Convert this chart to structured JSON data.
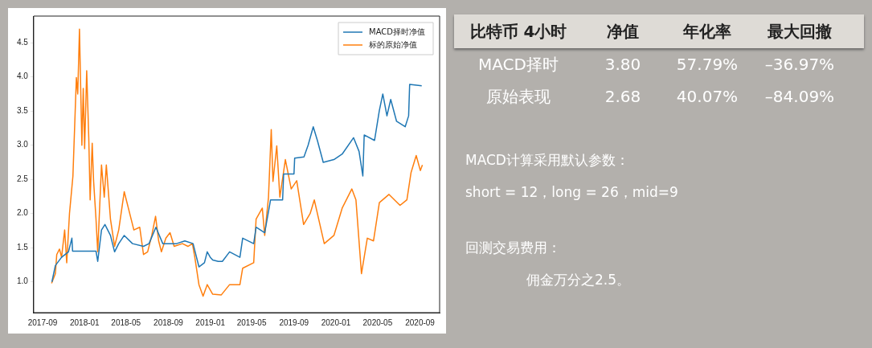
{
  "chart_data": [
    {
      "type": "line",
      "legend": "top right",
      "marker": "none",
      "line_style": "solid",
      "xlim": [
        "2017-08-06",
        "2020-10-28"
      ],
      "xticks": [
        "2017-09",
        "2018-01",
        "2018-05",
        "2018-09",
        "2019-01",
        "2019-05",
        "2019-09",
        "2020-01",
        "2020-05",
        "2020-09"
      ],
      "ylim": [
        0.55,
        4.89
      ],
      "yticks": [
        {
          "value": 1,
          "label": "1.0"
        },
        1.5,
        {
          "value": 2,
          "label": "2.0"
        },
        2.5,
        {
          "value": 3,
          "label": "3.0"
        },
        3.5,
        {
          "value": 4,
          "label": "4.0"
        },
        4.5
      ],
      "series": [
        {
          "name": "MACD择时净值",
          "color": "#1f77b4",
          "x": [
            "2017-09-28",
            "2017-10-08",
            "2017-10-26",
            "2017-11-15",
            "2017-11-25",
            "2017-11-27",
            "2018-02-03",
            "2018-02-08",
            "2018-02-19",
            "2018-03-01",
            "2018-03-17",
            "2018-03-29",
            "2018-04-10",
            "2018-04-26",
            "2018-05-20",
            "2018-06-21",
            "2018-07-07",
            "2018-07-27",
            "2018-08-16",
            "2018-09-25",
            "2018-10-19",
            "2018-11-12",
            "2018-11-22",
            "2018-11-29",
            "2018-12-15",
            "2018-12-23",
            "2019-01-01",
            "2019-01-08",
            "2019-01-24",
            "2019-02-05",
            "2019-02-26",
            "2019-03-28",
            "2019-04-05",
            "2019-05-07",
            "2019-05-14",
            "2019-06-08",
            "2019-06-25",
            "2019-07-30",
            "2019-08-02",
            "2019-09-01",
            "2019-09-03",
            "2019-09-30",
            "2019-10-12",
            "2019-10-27",
            "2019-11-08",
            "2019-11-25",
            "2019-12-26",
            "2020-01-19",
            "2020-02-21",
            "2020-03-08",
            "2020-03-19",
            "2020-03-23",
            "2020-04-22",
            "2020-05-06",
            "2020-05-16",
            "2020-05-28",
            "2020-06-08",
            "2020-06-25",
            "2020-07-20",
            "2020-07-30",
            "2020-08-02",
            "2020-09-06"
          ],
          "values": [
            1.0,
            1.24,
            1.36,
            1.44,
            1.64,
            1.45,
            1.45,
            1.3,
            1.76,
            1.84,
            1.68,
            1.44,
            1.56,
            1.68,
            1.56,
            1.52,
            1.56,
            1.8,
            1.56,
            1.56,
            1.6,
            1.56,
            1.36,
            1.22,
            1.28,
            1.44,
            1.36,
            1.32,
            1.3,
            1.3,
            1.44,
            1.36,
            1.64,
            1.56,
            1.8,
            1.72,
            2.2,
            2.2,
            2.58,
            2.58,
            2.81,
            2.83,
            3.0,
            3.27,
            3.07,
            2.75,
            2.79,
            2.87,
            3.11,
            2.91,
            2.55,
            3.15,
            3.07,
            3.51,
            3.75,
            3.43,
            3.67,
            3.35,
            3.27,
            3.43,
            3.89,
            3.87
          ]
        },
        {
          "name": "标的原始净值",
          "color": "#ff7f0e",
          "x": [
            "2017-09-27",
            "2017-10-08",
            "2017-10-12",
            "2017-10-20",
            "2017-10-26",
            "2017-11-04",
            "2017-11-10",
            "2017-11-18",
            "2017-11-28",
            "2017-12-08",
            "2017-12-12",
            "2017-12-17",
            "2017-12-24",
            "2017-12-28",
            "2018-01-01",
            "2018-01-07",
            "2018-01-13",
            "2018-01-17",
            "2018-01-23",
            "2018-01-27",
            "2018-02-03",
            "2018-02-08",
            "2018-02-19",
            "2018-02-27",
            "2018-03-05",
            "2018-03-17",
            "2018-03-29",
            "2018-04-10",
            "2018-04-26",
            "2018-05-08",
            "2018-05-24",
            "2018-06-10",
            "2018-06-21",
            "2018-07-03",
            "2018-07-15",
            "2018-07-26",
            "2018-08-04",
            "2018-08-12",
            "2018-08-25",
            "2018-09-06",
            "2018-09-18",
            "2018-10-12",
            "2018-10-28",
            "2018-11-10",
            "2018-11-17",
            "2018-11-29",
            "2018-12-11",
            "2018-12-23",
            "2019-01-08",
            "2019-02-02",
            "2019-02-26",
            "2019-03-28",
            "2019-04-05",
            "2019-05-07",
            "2019-05-14",
            "2019-06-01",
            "2019-06-08",
            "2019-06-19",
            "2019-06-27",
            "2019-07-02",
            "2019-07-13",
            "2019-07-22",
            "2019-08-07",
            "2019-08-24",
            "2019-09-09",
            "2019-09-29",
            "2019-10-18",
            "2019-10-30",
            "2019-11-28",
            "2019-12-26",
            "2020-01-19",
            "2020-02-16",
            "2020-02-28",
            "2020-03-15",
            "2020-04-01",
            "2020-04-19",
            "2020-05-06",
            "2020-06-03",
            "2020-07-05",
            "2020-07-25",
            "2020-08-06",
            "2020-08-21",
            "2020-09-02",
            "2020-09-08"
          ],
          "values": [
            0.98,
            1.12,
            1.4,
            1.48,
            1.36,
            1.76,
            1.28,
            2.0,
            2.55,
            3.99,
            3.75,
            4.7,
            3.0,
            3.83,
            2.95,
            4.09,
            3.11,
            2.2,
            3.03,
            2.48,
            1.92,
            1.44,
            2.71,
            2.24,
            2.71,
            1.92,
            1.52,
            1.76,
            2.32,
            2.08,
            1.76,
            1.8,
            1.4,
            1.44,
            1.68,
            1.96,
            1.6,
            1.44,
            1.64,
            1.72,
            1.52,
            1.56,
            1.52,
            1.56,
            1.36,
            0.96,
            0.79,
            0.96,
            0.82,
            0.81,
            0.96,
            0.96,
            1.2,
            1.28,
            1.92,
            2.08,
            1.68,
            2.24,
            3.23,
            2.47,
            2.99,
            2.24,
            2.79,
            2.36,
            2.48,
            1.84,
            2.0,
            2.2,
            1.56,
            1.68,
            2.08,
            2.36,
            2.2,
            1.12,
            1.64,
            1.6,
            2.16,
            2.28,
            2.12,
            2.2,
            2.6,
            2.85,
            2.63,
            2.71
          ]
        }
      ]
    },
    {
      "type": "other",
      "annotations": [
        "比特币 4小时",
        "净值",
        "年化率",
        "最大回撤",
        "MACD择时",
        "3.80",
        "57.79%",
        "–36.97%",
        "原始表现",
        "2.68",
        "40.07%",
        "–84.09%",
        "MACD计算采用默认参数：",
        "short = 12，long = 26，mid=9",
        "回测交易费用：",
        "佣金万分之2.5。"
      ]
    }
  ]
}
